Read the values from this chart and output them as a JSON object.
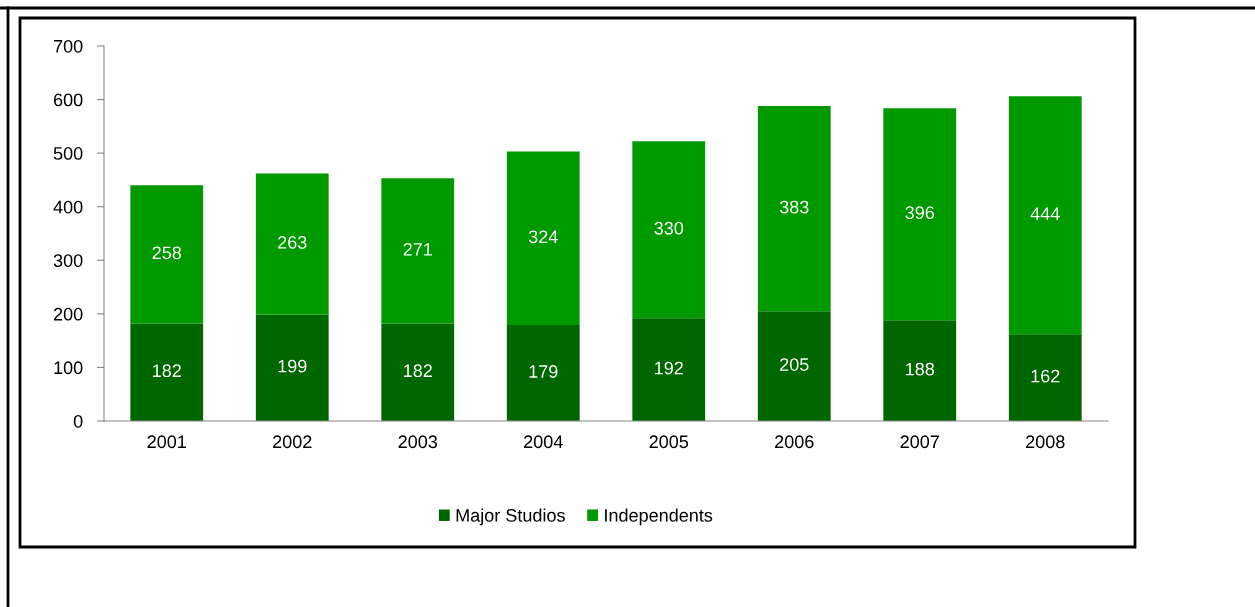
{
  "chart_data": {
    "type": "bar",
    "stacked": true,
    "categories": [
      "2001",
      "2002",
      "2003",
      "2004",
      "2005",
      "2006",
      "2007",
      "2008"
    ],
    "series": [
      {
        "name": "Major Studios",
        "color": "#006600",
        "values": [
          182,
          199,
          182,
          179,
          192,
          205,
          188,
          162
        ]
      },
      {
        "name": "Independents",
        "color": "#009900",
        "values": [
          258,
          263,
          271,
          324,
          330,
          383,
          396,
          444
        ]
      }
    ],
    "ylim": [
      0,
      700
    ],
    "yticks": [
      0,
      100,
      200,
      300,
      400,
      500,
      600,
      700
    ],
    "grid": false,
    "legend": "bottom",
    "data_labels": true
  }
}
